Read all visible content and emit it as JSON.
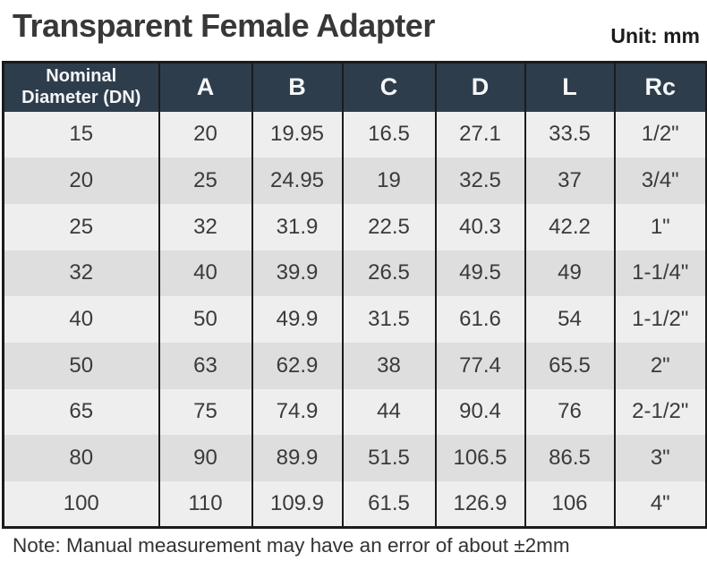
{
  "page": {
    "title": "Transparent Female Adapter",
    "unit_label": "Unit: mm",
    "note": "Note: Manual measurement may have an error of about ±2mm"
  },
  "table": {
    "header": {
      "dn_line1": "Nominal",
      "dn_line2": "Diameter (DN)",
      "cols": [
        "A",
        "B",
        "C",
        "D",
        "L",
        "Rc"
      ]
    },
    "rows": [
      [
        "15",
        "20",
        "19.95",
        "16.5",
        "27.1",
        "33.5",
        "1/2\""
      ],
      [
        "20",
        "25",
        "24.95",
        "19",
        "32.5",
        "37",
        "3/4\""
      ],
      [
        "25",
        "32",
        "31.9",
        "22.5",
        "40.3",
        "42.2",
        "1\""
      ],
      [
        "32",
        "40",
        "39.9",
        "26.5",
        "49.5",
        "49",
        "1-1/4\""
      ],
      [
        "40",
        "50",
        "49.9",
        "31.5",
        "61.6",
        "54",
        "1-1/2\""
      ],
      [
        "50",
        "63",
        "62.9",
        "38",
        "77.4",
        "65.5",
        "2\""
      ],
      [
        "65",
        "75",
        "74.9",
        "44",
        "90.4",
        "76",
        "2-1/2\""
      ],
      [
        "80",
        "90",
        "89.9",
        "51.5",
        "106.5",
        "86.5",
        "3\""
      ],
      [
        "100",
        "110",
        "109.9",
        "61.5",
        "126.9",
        "106",
        "4\""
      ]
    ]
  },
  "colors": {
    "header_bg": "#2e3d4c",
    "row_odd": "#eeeeee",
    "row_even": "#dedede",
    "border": "#1b1b1b",
    "header_text": "#f5f6f7",
    "cell_text": "#3a3a3a",
    "title_text": "#383838"
  }
}
